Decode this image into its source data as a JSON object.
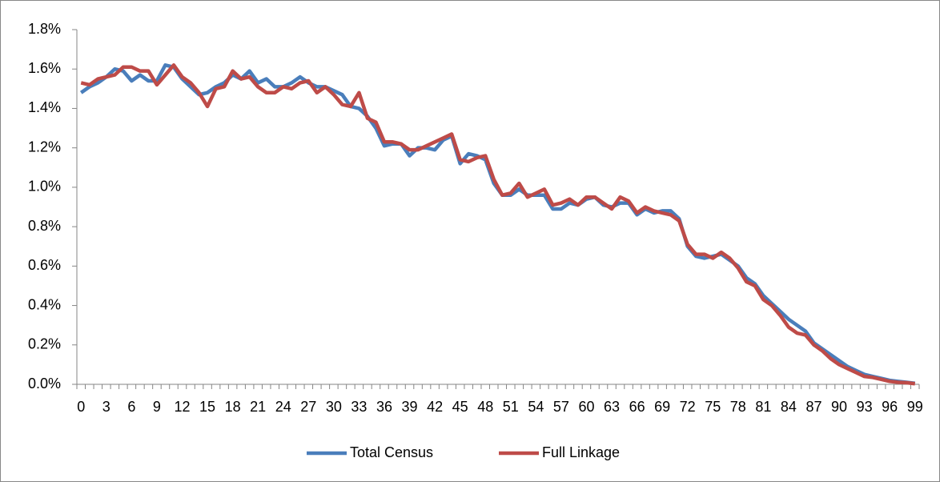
{
  "chart_data": {
    "type": "line",
    "categories": [
      0,
      null,
      null,
      3,
      null,
      null,
      6,
      null,
      null,
      9,
      null,
      null,
      12,
      null,
      null,
      15,
      null,
      null,
      18,
      null,
      null,
      21,
      null,
      null,
      24,
      null,
      null,
      27,
      null,
      null,
      30,
      null,
      null,
      33,
      null,
      null,
      36,
      null,
      null,
      39,
      null,
      null,
      42,
      null,
      null,
      45,
      null,
      null,
      48,
      null,
      null,
      51,
      null,
      null,
      54,
      null,
      null,
      57,
      null,
      null,
      60,
      null,
      null,
      63,
      null,
      null,
      66,
      null,
      null,
      69,
      null,
      null,
      72,
      null,
      null,
      75,
      null,
      null,
      78,
      null,
      null,
      81,
      null,
      null,
      84,
      null,
      null,
      87,
      null,
      null,
      90,
      null,
      null,
      93,
      null,
      null,
      96,
      null,
      null,
      99
    ],
    "series": [
      {
        "name": "Total Census",
        "color": "#4a7ebb",
        "values": [
          1.48,
          1.51,
          1.53,
          1.56,
          1.6,
          1.59,
          1.54,
          1.57,
          1.54,
          1.54,
          1.62,
          1.61,
          1.55,
          1.51,
          1.47,
          1.48,
          1.51,
          1.53,
          1.57,
          1.55,
          1.59,
          1.53,
          1.55,
          1.51,
          1.51,
          1.53,
          1.56,
          1.53,
          1.51,
          1.51,
          1.49,
          1.47,
          1.41,
          1.4,
          1.36,
          1.3,
          1.21,
          1.22,
          1.22,
          1.16,
          1.2,
          1.2,
          1.19,
          1.24,
          1.26,
          1.12,
          1.17,
          1.16,
          1.14,
          1.02,
          0.96,
          0.96,
          0.99,
          0.96,
          0.96,
          0.96,
          0.89,
          0.89,
          0.92,
          0.91,
          0.94,
          0.95,
          0.91,
          0.9,
          0.92,
          0.92,
          0.86,
          0.89,
          0.87,
          0.88,
          0.88,
          0.84,
          0.7,
          0.65,
          0.64,
          0.65,
          0.66,
          0.63,
          0.6,
          0.54,
          0.51,
          0.45,
          0.41,
          0.37,
          0.33,
          0.3,
          0.27,
          0.21,
          0.18,
          0.15,
          0.12,
          0.09,
          0.07,
          0.05,
          0.04,
          0.03,
          0.02,
          0.015,
          0.01,
          0.005
        ]
      },
      {
        "name": "Full Linkage",
        "color": "#be4b48",
        "values": [
          1.53,
          1.52,
          1.55,
          1.56,
          1.57,
          1.61,
          1.61,
          1.59,
          1.59,
          1.52,
          1.57,
          1.62,
          1.56,
          1.53,
          1.48,
          1.41,
          1.5,
          1.51,
          1.59,
          1.55,
          1.56,
          1.51,
          1.48,
          1.48,
          1.51,
          1.5,
          1.53,
          1.54,
          1.48,
          1.51,
          1.47,
          1.42,
          1.41,
          1.48,
          1.35,
          1.33,
          1.23,
          1.23,
          1.22,
          1.19,
          1.19,
          1.21,
          1.23,
          1.25,
          1.27,
          1.14,
          1.13,
          1.15,
          1.16,
          1.04,
          0.96,
          0.97,
          1.02,
          0.95,
          0.97,
          0.99,
          0.91,
          0.92,
          0.94,
          0.91,
          0.95,
          0.95,
          0.92,
          0.89,
          0.95,
          0.93,
          0.87,
          0.9,
          0.88,
          0.87,
          0.86,
          0.83,
          0.71,
          0.66,
          0.66,
          0.64,
          0.67,
          0.64,
          0.59,
          0.52,
          0.5,
          0.43,
          0.4,
          0.35,
          0.29,
          0.26,
          0.25,
          0.2,
          0.17,
          0.13,
          0.1,
          0.08,
          0.06,
          0.04,
          0.035,
          0.025,
          0.015,
          0.01,
          0.008,
          0.003
        ]
      }
    ],
    "ylim": [
      0,
      1.8
    ],
    "yticks": [
      {
        "value": 0,
        "label": "0.0%"
      },
      {
        "value": 0.2,
        "label": "0.2%"
      },
      {
        "value": 0.4,
        "label": "0.4%"
      },
      {
        "value": 0.6,
        "label": "0.6%"
      },
      {
        "value": 0.8,
        "label": "0.8%"
      },
      {
        "value": 1.0,
        "label": "1.0%"
      },
      {
        "value": 1.2,
        "label": "1.2%"
      },
      {
        "value": 1.4,
        "label": "1.4%"
      },
      {
        "value": 1.6,
        "label": "1.6%"
      },
      {
        "value": 1.8,
        "label": "1.8%"
      }
    ],
    "grid": false,
    "legend": "bottom"
  }
}
